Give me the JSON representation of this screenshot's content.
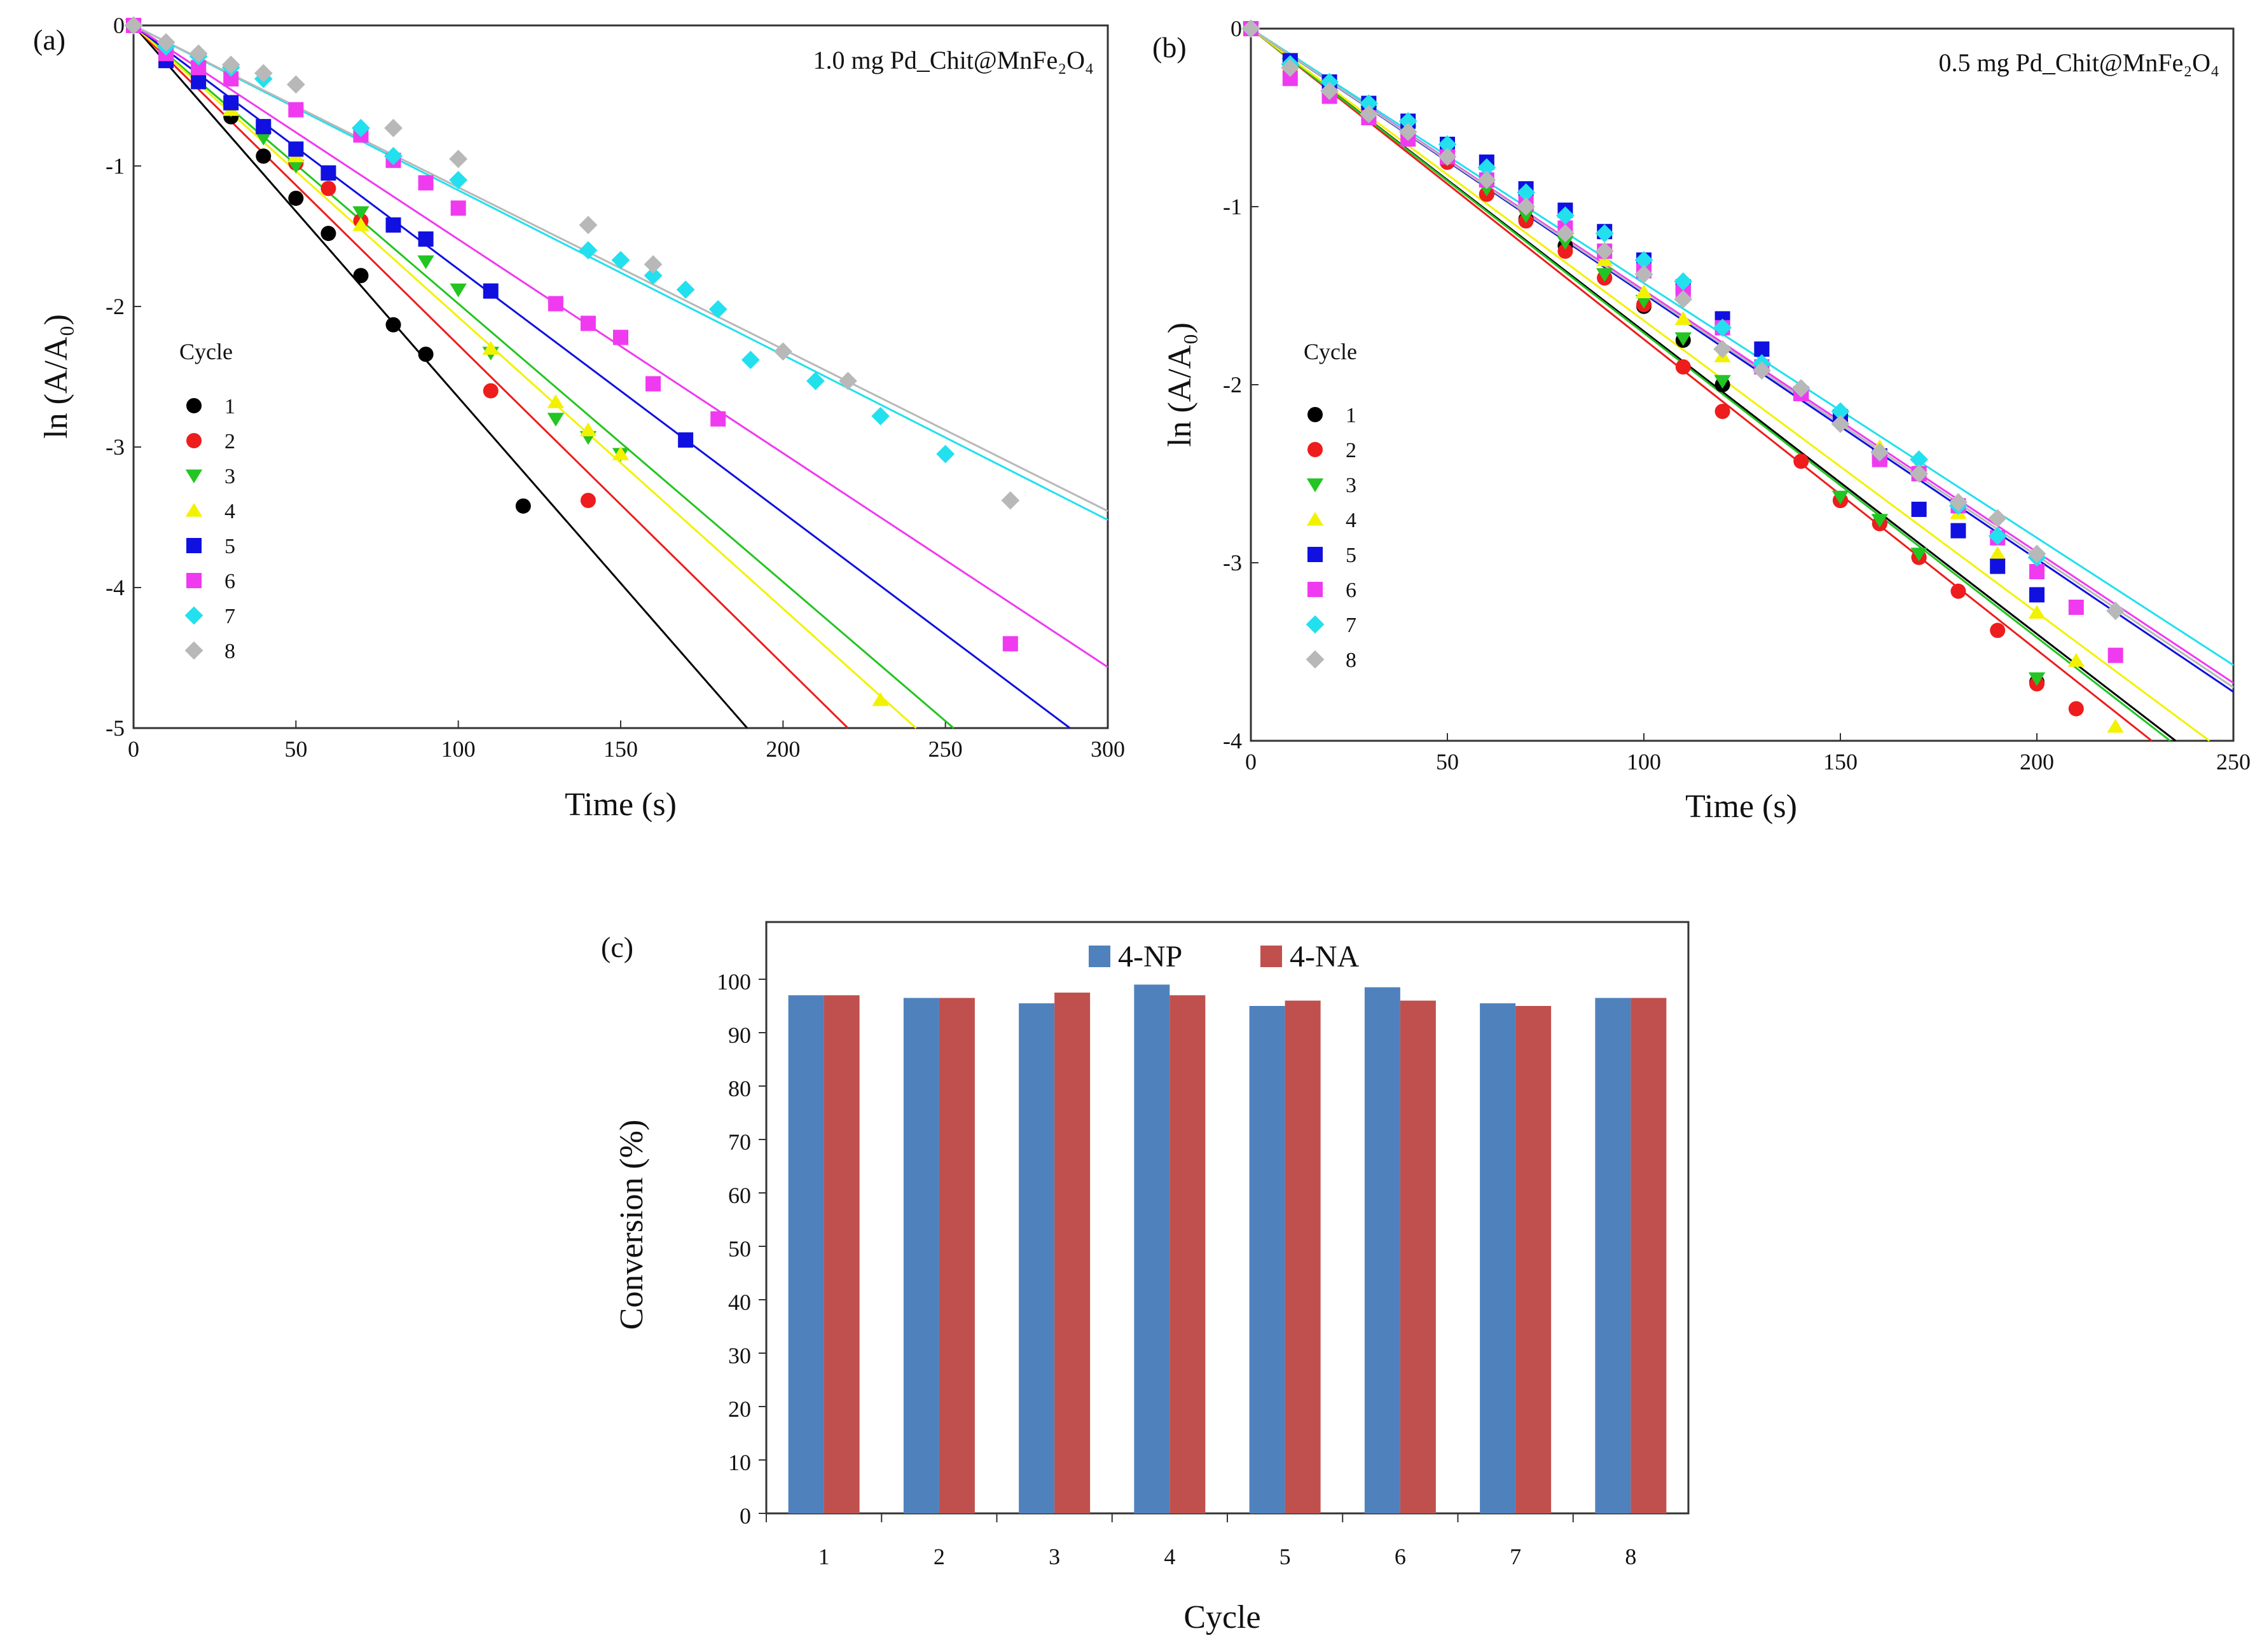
{
  "chart_data": [
    {
      "type": "scatter",
      "panel_label": "(a)",
      "annotation": "1.0 mg Pd_Chit@MnFe₂O₄",
      "title": "1.0 mg Pd_Chit@MnFe2O4",
      "xlabel": "Time (s)",
      "ylabel": "ln (A/A₀)",
      "xlim": [
        0,
        300
      ],
      "ylim": [
        -5,
        0
      ],
      "xticks": [
        0,
        50,
        100,
        150,
        200,
        250,
        300
      ],
      "yticks": [
        0,
        -1,
        -2,
        -3,
        -4,
        -5
      ],
      "legend_title": "Cycle",
      "legend_position": "left",
      "series": [
        {
          "name": "1",
          "color": "#000000",
          "marker": "circle",
          "slope": -0.02646,
          "x": [
            0,
            10,
            20,
            30,
            40,
            50,
            60,
            70,
            80,
            90,
            120
          ],
          "y": [
            0,
            -0.24,
            -0.33,
            -0.65,
            -0.93,
            -1.23,
            -1.48,
            -1.78,
            -2.13,
            -2.34,
            -3.42
          ]
        },
        {
          "name": "2",
          "color": "#ee1c1c",
          "marker": "circle",
          "slope": -0.02273,
          "x": [
            0,
            20,
            40,
            50,
            60,
            70,
            110,
            140
          ],
          "y": [
            0,
            -0.34,
            -0.72,
            -0.98,
            -1.16,
            -1.39,
            -2.6,
            -3.38
          ]
        },
        {
          "name": "3",
          "color": "#22c522",
          "marker": "triangle-down",
          "slope": -0.0198,
          "x": [
            0,
            10,
            20,
            30,
            40,
            50,
            70,
            90,
            100,
            110,
            130,
            140,
            150
          ],
          "y": [
            0,
            -0.2,
            -0.3,
            -0.6,
            -0.8,
            -1.0,
            -1.33,
            -1.68,
            -1.88,
            -2.33,
            -2.8,
            -2.93,
            -3.05
          ]
        },
        {
          "name": "4",
          "color": "#f2f200",
          "marker": "triangle-up",
          "slope": -0.02075,
          "x": [
            0,
            10,
            20,
            30,
            50,
            70,
            110,
            130,
            140,
            150,
            230
          ],
          "y": [
            0,
            -0.22,
            -0.33,
            -0.6,
            -0.93,
            -1.42,
            -2.3,
            -2.68,
            -2.88,
            -3.05,
            -4.8
          ]
        },
        {
          "name": "5",
          "color": "#1010e0",
          "marker": "square",
          "slope": -0.01734,
          "x": [
            0,
            10,
            20,
            30,
            40,
            50,
            60,
            80,
            90,
            110,
            170
          ],
          "y": [
            0,
            -0.25,
            -0.4,
            -0.55,
            -0.72,
            -0.88,
            -1.05,
            -1.42,
            -1.52,
            -1.89,
            -2.95
          ]
        },
        {
          "name": "6",
          "color": "#f03af0",
          "marker": "square",
          "slope": -0.01522,
          "x": [
            0,
            10,
            20,
            30,
            50,
            70,
            80,
            90,
            100,
            130,
            140,
            150,
            160,
            180,
            270
          ],
          "y": [
            0,
            -0.2,
            -0.3,
            -0.38,
            -0.6,
            -0.78,
            -0.96,
            -1.12,
            -1.3,
            -1.98,
            -2.12,
            -2.22,
            -2.55,
            -2.8,
            -4.4
          ]
        },
        {
          "name": "7",
          "color": "#22e0ee",
          "marker": "diamond",
          "slope": -0.01173,
          "x": [
            0,
            10,
            20,
            30,
            40,
            70,
            80,
            100,
            140,
            150,
            160,
            170,
            180,
            190,
            210,
            230,
            250
          ],
          "y": [
            0,
            -0.15,
            -0.22,
            -0.3,
            -0.38,
            -0.73,
            -0.93,
            -1.1,
            -1.6,
            -1.67,
            -1.78,
            -1.88,
            -2.02,
            -2.38,
            -2.53,
            -2.78,
            -3.05
          ]
        },
        {
          "name": "8",
          "color": "#b8b8b8",
          "marker": "diamond",
          "slope": -0.01152,
          "x": [
            0,
            10,
            20,
            30,
            40,
            50,
            80,
            100,
            140,
            160,
            200,
            220,
            270
          ],
          "y": [
            0,
            -0.12,
            -0.2,
            -0.28,
            -0.34,
            -0.42,
            -0.73,
            -0.95,
            -1.42,
            -1.7,
            -2.32,
            -2.53,
            -3.38
          ]
        }
      ]
    },
    {
      "type": "scatter",
      "panel_label": "(b)",
      "annotation": "0.5 mg Pd_Chit@MnFe₂O₄",
      "title": "0.5 mg Pd_Chit@MnFe2O4",
      "xlabel": "Time (s)",
      "ylabel": "ln (A/A₀)",
      "xlim": [
        0,
        250
      ],
      "ylim": [
        -4,
        0
      ],
      "xticks": [
        0,
        50,
        100,
        150,
        200,
        250
      ],
      "yticks": [
        0,
        -1,
        -2,
        -3,
        -4
      ],
      "legend_title": "Cycle",
      "legend_position": "left",
      "series": [
        {
          "name": "1",
          "color": "#000000",
          "marker": "circle",
          "note": "overlaps green",
          "slope": -0.017,
          "x": [
            0,
            10,
            20,
            30,
            40,
            50,
            60,
            70,
            80,
            90,
            100,
            110,
            120,
            150,
            160,
            170,
            200
          ],
          "y": [
            0,
            -0.2,
            -0.35,
            -0.5,
            -0.6,
            -0.75,
            -0.93,
            -1.07,
            -1.22,
            -1.4,
            -1.56,
            -1.75,
            -2.0,
            -2.65,
            -2.78,
            -2.97,
            -3.67
          ]
        },
        {
          "name": "2",
          "color": "#ee1c1c",
          "marker": "circle",
          "slope": -0.01745,
          "x": [
            0,
            10,
            20,
            30,
            40,
            50,
            60,
            70,
            80,
            90,
            100,
            110,
            120,
            140,
            150,
            160,
            170,
            180,
            190,
            200,
            210
          ],
          "y": [
            0,
            -0.22,
            -0.35,
            -0.48,
            -0.6,
            -0.75,
            -0.93,
            -1.08,
            -1.25,
            -1.4,
            -1.55,
            -1.9,
            -2.15,
            -2.43,
            -2.65,
            -2.78,
            -2.97,
            -3.16,
            -3.38,
            -3.68,
            -3.82
          ]
        },
        {
          "name": "3",
          "color": "#22c522",
          "marker": "triangle-down",
          "slope": -0.0171,
          "x": [
            0,
            10,
            20,
            30,
            40,
            50,
            60,
            70,
            80,
            90,
            100,
            110,
            120,
            150,
            160,
            170,
            200
          ],
          "y": [
            0,
            -0.2,
            -0.33,
            -0.47,
            -0.58,
            -0.72,
            -0.9,
            -1.05,
            -1.2,
            -1.38,
            -1.53,
            -1.74,
            -1.98,
            -2.63,
            -2.76,
            -2.95,
            -3.65
          ]
        },
        {
          "name": "4",
          "color": "#f2f200",
          "marker": "triangle-up",
          "slope": -0.0164,
          "x": [
            0,
            10,
            20,
            30,
            40,
            50,
            60,
            70,
            80,
            90,
            100,
            110,
            120,
            140,
            150,
            160,
            170,
            180,
            190,
            200,
            210,
            220
          ],
          "y": [
            0,
            -0.2,
            -0.33,
            -0.45,
            -0.55,
            -0.68,
            -0.85,
            -0.98,
            -1.12,
            -1.3,
            -1.48,
            -1.63,
            -1.84,
            -2.05,
            -2.15,
            -2.35,
            -2.45,
            -2.72,
            -2.95,
            -3.28,
            -3.55,
            -3.92
          ]
        },
        {
          "name": "5",
          "color": "#1010e0",
          "marker": "square",
          "slope": -0.0149,
          "x": [
            0,
            10,
            20,
            30,
            40,
            50,
            60,
            70,
            80,
            90,
            100,
            110,
            120,
            130,
            140,
            150,
            160,
            170,
            180,
            190,
            200
          ],
          "y": [
            0,
            -0.18,
            -0.3,
            -0.42,
            -0.52,
            -0.65,
            -0.75,
            -0.9,
            -1.02,
            -1.14,
            -1.3,
            -1.45,
            -1.63,
            -1.8,
            -2.05,
            -2.18,
            -2.4,
            -2.7,
            -2.82,
            -3.02,
            -3.18
          ]
        },
        {
          "name": "6",
          "color": "#f03af0",
          "marker": "square",
          "slope": -0.0147,
          "x": [
            0,
            10,
            20,
            30,
            40,
            50,
            60,
            70,
            80,
            90,
            100,
            110,
            120,
            130,
            140,
            160,
            170,
            180,
            190,
            200,
            210,
            220
          ],
          "y": [
            0,
            -0.28,
            -0.38,
            -0.5,
            -0.62,
            -0.72,
            -0.85,
            -0.98,
            -1.12,
            -1.25,
            -1.36,
            -1.48,
            -1.68,
            -1.9,
            -2.05,
            -2.42,
            -2.5,
            -2.68,
            -2.86,
            -3.05,
            -3.25,
            -3.52
          ]
        },
        {
          "name": "7",
          "color": "#22e0ee",
          "marker": "diamond",
          "slope": -0.0143,
          "x": [
            0,
            10,
            20,
            30,
            40,
            50,
            60,
            70,
            80,
            90,
            100,
            110,
            120,
            130,
            140,
            150,
            160,
            170,
            180,
            190,
            200,
            220
          ],
          "y": [
            0,
            -0.2,
            -0.3,
            -0.42,
            -0.52,
            -0.65,
            -0.78,
            -0.92,
            -1.05,
            -1.15,
            -1.3,
            -1.42,
            -1.68,
            -1.88,
            -2.02,
            -2.15,
            -2.38,
            -2.42,
            -2.68,
            -2.85,
            -2.97,
            -3.27
          ]
        },
        {
          "name": "8",
          "color": "#b8b8b8",
          "marker": "diamond",
          "slope": -0.0148,
          "x": [
            0,
            10,
            20,
            30,
            40,
            50,
            60,
            70,
            80,
            90,
            100,
            110,
            120,
            130,
            140,
            150,
            160,
            170,
            180,
            190,
            200,
            220
          ],
          "y": [
            0,
            -0.22,
            -0.35,
            -0.48,
            -0.58,
            -0.72,
            -0.85,
            -1.0,
            -1.15,
            -1.25,
            -1.38,
            -1.52,
            -1.8,
            -1.92,
            -2.02,
            -2.22,
            -2.38,
            -2.5,
            -2.66,
            -2.75,
            -2.95,
            -3.27
          ]
        }
      ]
    },
    {
      "type": "bar",
      "panel_label": "(c)",
      "xlabel": "Cycle",
      "ylabel": "Conversion  (%)",
      "categories": [
        "1",
        "2",
        "3",
        "4",
        "5",
        "6",
        "7",
        "8"
      ],
      "ylim": [
        0,
        100
      ],
      "yticks": [
        0,
        10,
        20,
        30,
        40,
        50,
        60,
        70,
        80,
        90,
        100
      ],
      "legend_position": "top",
      "series": [
        {
          "name": "4-NP",
          "color": "#4f81bd",
          "values": [
            97,
            96.5,
            95.5,
            99,
            95,
            98.5,
            95.5,
            96.5
          ]
        },
        {
          "name": "4-NA",
          "color": "#c0504d",
          "values": [
            97,
            96.5,
            97.5,
            97,
            96,
            96,
            95,
            96.5
          ]
        }
      ]
    }
  ]
}
